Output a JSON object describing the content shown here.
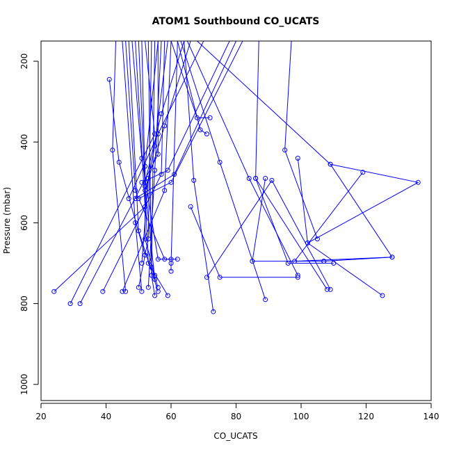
{
  "chart_data": {
    "type": "line",
    "title": "ATOM1 Southbound CO_UCATS",
    "xlabel": "CO_UCATS",
    "ylabel": "Pressure (mbar)",
    "xlim": [
      20,
      140
    ],
    "ylim": [
      1040,
      150
    ],
    "y_reversed": true,
    "grid": false,
    "xticks": [
      20,
      40,
      60,
      80,
      100,
      120,
      140
    ],
    "yticks": [
      200,
      400,
      600,
      800,
      1000
    ],
    "color": "#0000ff",
    "series": [
      {
        "points": [
          [
            49,
            150
          ],
          [
            52,
            560
          ],
          [
            24,
            770
          ]
        ]
      },
      {
        "points": [
          [
            52,
            150
          ],
          [
            55,
            380
          ],
          [
            29,
            800
          ]
        ]
      },
      {
        "points": [
          [
            56,
            150
          ],
          [
            56,
            430
          ],
          [
            32,
            800
          ]
        ]
      },
      {
        "points": [
          [
            58,
            150
          ],
          [
            57,
            480
          ],
          [
            39,
            770
          ]
        ]
      },
      {
        "points": [
          [
            60,
            150
          ],
          [
            58,
            520
          ],
          [
            45,
            770
          ]
        ]
      },
      {
        "points": [
          [
            62,
            150
          ],
          [
            60,
            700
          ],
          [
            60,
            720
          ]
        ]
      },
      {
        "points": [
          [
            45,
            150
          ],
          [
            49,
            600
          ],
          [
            51,
            770
          ]
        ]
      },
      {
        "points": [
          [
            47,
            150
          ],
          [
            50,
            620
          ],
          [
            56,
            770
          ]
        ]
      },
      {
        "points": [
          [
            50,
            150
          ],
          [
            53,
            700
          ],
          [
            59,
            780
          ]
        ]
      },
      {
        "points": [
          [
            53,
            150
          ],
          [
            54,
            730
          ],
          [
            55,
            780
          ]
        ]
      },
      {
        "points": [
          [
            55,
            150
          ],
          [
            54,
            710
          ],
          [
            56,
            760
          ]
        ]
      },
      {
        "points": [
          [
            54,
            150
          ],
          [
            53,
            640
          ],
          [
            50,
            760
          ]
        ]
      },
      {
        "points": [
          [
            51,
            150
          ],
          [
            52,
            510
          ],
          [
            55,
            740
          ]
        ]
      },
      {
        "points": [
          [
            57,
            150
          ],
          [
            55,
            470
          ],
          [
            53,
            760
          ]
        ]
      },
      {
        "points": [
          [
            41,
            245
          ],
          [
            44,
            450
          ],
          [
            52,
            680
          ]
        ]
      },
      {
        "points": [
          [
            43,
            150
          ],
          [
            42,
            420
          ],
          [
            46,
            770
          ]
        ]
      },
      {
        "points": [
          [
            64,
            150
          ],
          [
            57,
            330
          ],
          [
            52,
            500
          ]
        ]
      },
      {
        "points": [
          [
            66,
            150
          ],
          [
            58,
            360
          ],
          [
            52,
            520
          ]
        ]
      },
      {
        "points": [
          [
            70,
            150
          ],
          [
            56,
            380
          ],
          [
            47,
            540
          ]
        ]
      },
      {
        "points": [
          [
            78,
            150
          ],
          [
            59,
            470
          ],
          [
            51,
            500
          ]
        ]
      },
      {
        "points": [
          [
            80,
            150
          ],
          [
            61,
            480
          ],
          [
            49,
            540
          ]
        ]
      },
      {
        "points": [
          [
            82,
            150
          ],
          [
            60,
            500
          ],
          [
            50,
            540
          ]
        ]
      },
      {
        "points": [
          [
            60,
            150
          ],
          [
            68,
            340
          ],
          [
            72,
            340
          ]
        ]
      },
      {
        "points": [
          [
            62,
            150
          ],
          [
            69,
            370
          ],
          [
            71,
            380
          ]
        ]
      },
      {
        "points": [
          [
            63,
            150
          ],
          [
            75,
            450
          ],
          [
            89,
            790
          ]
        ]
      },
      {
        "points": [
          [
            65,
            150
          ],
          [
            84,
            490
          ],
          [
            99,
            730
          ]
        ]
      },
      {
        "points": [
          [
            64,
            150
          ],
          [
            67,
            495
          ],
          [
            73,
            820
          ]
        ]
      },
      {
        "points": [
          [
            66,
            560
          ],
          [
            75,
            735
          ],
          [
            99,
            735
          ]
        ]
      },
      {
        "points": [
          [
            71,
            735
          ],
          [
            91,
            495
          ],
          [
            109,
            765
          ]
        ]
      },
      {
        "points": [
          [
            86,
            490
          ],
          [
            96,
            700
          ],
          [
            110,
            700
          ]
        ]
      },
      {
        "points": [
          [
            89,
            490
          ],
          [
            85,
            695
          ],
          [
            107,
            695
          ]
        ]
      },
      {
        "points": [
          [
            87,
            150
          ],
          [
            86,
            490
          ],
          [
            108,
            765
          ]
        ]
      },
      {
        "points": [
          [
            97,
            150
          ],
          [
            95,
            420
          ],
          [
            105,
            640
          ]
        ]
      },
      {
        "points": [
          [
            99,
            440
          ],
          [
            102,
            650
          ],
          [
            125,
            780
          ]
        ]
      },
      {
        "points": [
          [
            109,
            455
          ],
          [
            136,
            500
          ],
          [
            102,
            650
          ]
        ]
      },
      {
        "points": [
          [
            119,
            475
          ],
          [
            98,
            695
          ],
          [
            128,
            685
          ]
        ]
      },
      {
        "points": [
          [
            68,
            150
          ],
          [
            109,
            455
          ],
          [
            128,
            685
          ],
          [
            107,
            695
          ]
        ]
      },
      {
        "points": [
          [
            56,
            150
          ],
          [
            52,
            460
          ],
          [
            52,
            640
          ],
          [
            55,
            730
          ]
        ]
      },
      {
        "points": [
          [
            48,
            150
          ],
          [
            51,
            440
          ],
          [
            56,
            690
          ],
          [
            60,
            690
          ]
        ]
      },
      {
        "points": [
          [
            59,
            150
          ],
          [
            55,
            410
          ],
          [
            53,
            490
          ],
          [
            51,
            700
          ]
        ]
      },
      {
        "points": [
          [
            46,
            150
          ],
          [
            49,
            520
          ],
          [
            58,
            690
          ],
          [
            62,
            690
          ]
        ]
      }
    ]
  }
}
